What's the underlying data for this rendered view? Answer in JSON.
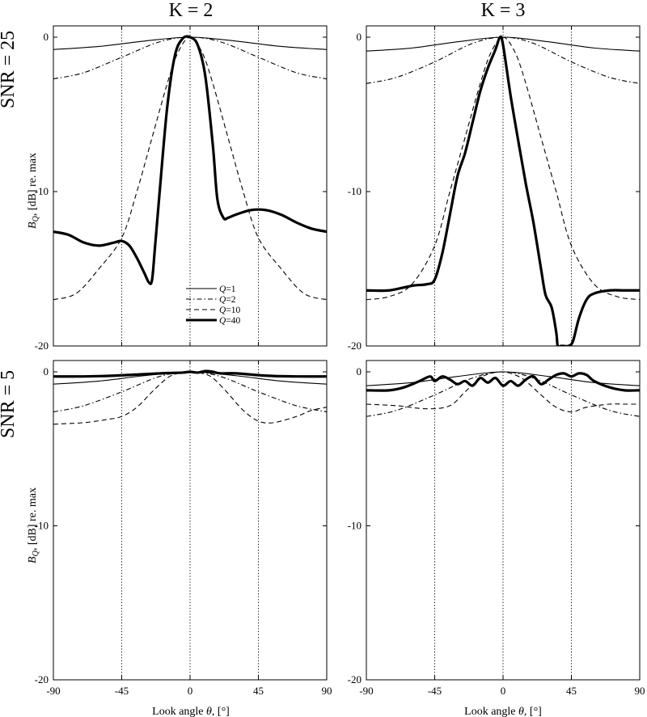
{
  "chart_data": {
    "type": "line",
    "column_titles": [
      "K = 2",
      "K = 3"
    ],
    "row_labels": [
      "SNR = 25",
      "SNR = 5"
    ],
    "ylabel_text": "B",
    "ylabel_sub": "Q",
    "ylabel_rest": ", [dB] re. max",
    "xlabel_text": "Look angle ",
    "xlabel_theta": "θ",
    "xlabel_rest": ", [°]",
    "xlim": [
      -90,
      90
    ],
    "ylim": [
      -20,
      0
    ],
    "xticks": [
      -90,
      -45,
      0,
      45,
      90
    ],
    "xtick_labels": [
      "-90",
      "-45",
      "0",
      "45",
      "90"
    ],
    "yticks": [
      0,
      -10,
      -20
    ],
    "ytick_labels": [
      "0",
      "-10",
      "-20"
    ],
    "vlines": [
      -45,
      0,
      45
    ],
    "legend": {
      "location": "lower-center of top-left panel",
      "entries": [
        {
          "prefix": "Q",
          "text": "=1",
          "style": "solid"
        },
        {
          "prefix": "Q",
          "text": "=2",
          "style": "dashdot"
        },
        {
          "prefix": "Q",
          "text": "=10",
          "style": "dashed"
        },
        {
          "prefix": "Q",
          "text": "=40",
          "style": "thick"
        }
      ]
    },
    "series_names": [
      "Q=1",
      "Q=2",
      "Q=10",
      "Q=40"
    ],
    "panels": [
      {
        "id": "snr25-k2",
        "series": [
          {
            "name": "Q=1",
            "x": [
              -90,
              -60,
              -30,
              0,
              30,
              60,
              90
            ],
            "y": [
              -0.8,
              -0.6,
              -0.25,
              0,
              -0.25,
              -0.6,
              -0.8
            ]
          },
          {
            "name": "Q=2",
            "x": [
              -90,
              -70,
              -45,
              -20,
              0,
              20,
              45,
              70,
              90
            ],
            "y": [
              -2.7,
              -2.3,
              -1.3,
              -0.3,
              0,
              -0.3,
              -1.3,
              -2.3,
              -2.7
            ]
          },
          {
            "name": "Q=10",
            "x": [
              -90,
              -75,
              -60,
              -45,
              -35,
              -25,
              -15,
              -8,
              0,
              8,
              15,
              25,
              35,
              45,
              60,
              75,
              90
            ],
            "y": [
              -17,
              -16.6,
              -15,
              -13,
              -10,
              -6.5,
              -3,
              -1,
              0,
              -1,
              -3,
              -6.5,
              -10,
              -13,
              -15,
              -16.6,
              -17
            ]
          },
          {
            "name": "Q=40",
            "x": [
              -90,
              -80,
              -70,
              -60,
              -50,
              -45,
              -40,
              -35,
              -30,
              -27,
              -25,
              -23,
              -20,
              -15,
              -10,
              -5,
              0,
              5,
              10,
              15,
              18,
              22,
              25,
              30,
              40,
              50,
              60,
              70,
              80,
              90
            ],
            "y": [
              -12.6,
              -12.8,
              -13.3,
              -13.5,
              -13.3,
              -13.2,
              -13.5,
              -14.3,
              -15.3,
              -15.9,
              -15.7,
              -13.5,
              -10,
              -4.5,
              -1.2,
              -0.1,
              0,
              -0.5,
              -2.5,
              -7,
              -10.5,
              -11.7,
              -11.7,
              -11.5,
              -11.2,
              -11.2,
              -11.5,
              -12,
              -12.4,
              -12.6
            ]
          }
        ]
      },
      {
        "id": "snr25-k3",
        "series": [
          {
            "name": "Q=1",
            "x": [
              -90,
              -60,
              -30,
              0,
              30,
              60,
              90
            ],
            "y": [
              -0.9,
              -0.7,
              -0.3,
              0,
              -0.3,
              -0.7,
              -0.9
            ]
          },
          {
            "name": "Q=2",
            "x": [
              -90,
              -70,
              -45,
              -20,
              0,
              20,
              45,
              70,
              90
            ],
            "y": [
              -3,
              -2.6,
              -1.6,
              -0.4,
              0,
              -0.4,
              -1.6,
              -2.6,
              -3
            ]
          },
          {
            "name": "Q=10",
            "x": [
              -90,
              -75,
              -60,
              -45,
              -35,
              -25,
              -15,
              -8,
              0,
              8,
              15,
              25,
              35,
              45,
              60,
              75,
              90
            ],
            "y": [
              -17,
              -16.8,
              -16,
              -13.5,
              -10,
              -6.5,
              -3,
              -1,
              0,
              -1,
              -3,
              -6.5,
              -10,
              -13.5,
              -16,
              -16.8,
              -17
            ]
          },
          {
            "name": "Q=40",
            "x": [
              -90,
              -75,
              -60,
              -50,
              -45,
              -40,
              -35,
              -30,
              -25,
              -20,
              -15,
              -10,
              -5,
              -2,
              0,
              5,
              10,
              15,
              20,
              25,
              28,
              32,
              35,
              36,
              38,
              40,
              43,
              46,
              50,
              55,
              60,
              70,
              80,
              90
            ],
            "y": [
              -16.4,
              -16.4,
              -16.1,
              -16,
              -15.7,
              -14,
              -11.5,
              -9,
              -7.5,
              -5.5,
              -3.5,
              -2,
              -0.8,
              0,
              -0.5,
              -3.8,
              -6.7,
              -9.5,
              -12,
              -15,
              -16.7,
              -17.5,
              -19.1,
              -20,
              -20,
              -20,
              -20,
              -19.7,
              -18.2,
              -17,
              -16.6,
              -16.4,
              -16.4,
              -16.4
            ]
          }
        ]
      },
      {
        "id": "snr5-k2",
        "series": [
          {
            "name": "Q=1",
            "x": [
              -90,
              -60,
              -30,
              0,
              30,
              60,
              90
            ],
            "y": [
              -0.8,
              -0.6,
              -0.25,
              0,
              -0.25,
              -0.6,
              -0.8
            ]
          },
          {
            "name": "Q=2",
            "x": [
              -90,
              -70,
              -45,
              -20,
              0,
              20,
              45,
              70,
              90
            ],
            "y": [
              -2.6,
              -2.2,
              -1.3,
              -0.3,
              0,
              -0.3,
              -1.3,
              -2.2,
              -2.6
            ]
          },
          {
            "name": "Q=10",
            "x": [
              -90,
              -70,
              -55,
              -45,
              -35,
              -25,
              -15,
              -8,
              0,
              8,
              15,
              25,
              35,
              45,
              55,
              70,
              80,
              90
            ],
            "y": [
              -3.4,
              -3.3,
              -3.1,
              -2.9,
              -2.3,
              -1.3,
              -0.4,
              -0.1,
              0,
              -0.1,
              -0.4,
              -1.4,
              -2.5,
              -3.2,
              -3.3,
              -2.9,
              -2.5,
              -2.3
            ]
          },
          {
            "name": "Q=40",
            "x": [
              -90,
              -70,
              -50,
              -30,
              -15,
              -5,
              0,
              5,
              10,
              15,
              20,
              30,
              50,
              70,
              90
            ],
            "y": [
              -0.3,
              -0.3,
              -0.25,
              -0.15,
              -0.08,
              -0.05,
              0,
              -0.05,
              0.05,
              0,
              -0.1,
              -0.1,
              -0.25,
              -0.3,
              -0.3
            ]
          }
        ]
      },
      {
        "id": "snr5-k3",
        "series": [
          {
            "name": "Q=1",
            "x": [
              -90,
              -60,
              -30,
              0,
              30,
              60,
              90
            ],
            "y": [
              -0.9,
              -0.7,
              -0.3,
              0,
              -0.3,
              -0.7,
              -0.9
            ]
          },
          {
            "name": "Q=2",
            "x": [
              -90,
              -70,
              -45,
              -20,
              0,
              20,
              45,
              70,
              90
            ],
            "y": [
              -2.9,
              -2.5,
              -1.5,
              -0.4,
              0,
              -0.4,
              -1.5,
              -2.5,
              -2.9
            ]
          },
          {
            "name": "Q=10",
            "x": [
              -90,
              -70,
              -50,
              -35,
              -25,
              -15,
              -8,
              0,
              8,
              15,
              25,
              35,
              45,
              55,
              70,
              80,
              90
            ],
            "y": [
              -2.1,
              -2.2,
              -2.4,
              -2.2,
              -1.3,
              -0.4,
              -0.1,
              0,
              -0.2,
              -0.6,
              -1.5,
              -2.3,
              -2.6,
              -2.3,
              -2.1,
              -2.1,
              -2.1
            ]
          },
          {
            "name": "Q=40",
            "x": [
              -90,
              -75,
              -65,
              -55,
              -48,
              -45,
              -40,
              -35,
              -30,
              -25,
              -20,
              -15,
              -10,
              -5,
              0,
              5,
              10,
              15,
              20,
              25,
              30,
              35,
              40,
              45,
              50,
              55,
              60,
              70,
              80,
              90
            ],
            "y": [
              -1.2,
              -1.2,
              -1,
              -0.6,
              -0.3,
              -0.6,
              -0.3,
              -0.5,
              -0.8,
              -0.6,
              -0.9,
              -0.4,
              -0.7,
              -0.4,
              -0.9,
              -0.6,
              -0.9,
              -0.5,
              -0.3,
              -0.8,
              -0.5,
              -0.2,
              -0.1,
              -0.3,
              -0.1,
              -0.2,
              -0.6,
              -1,
              -1.2,
              -1.2
            ]
          }
        ]
      }
    ]
  }
}
